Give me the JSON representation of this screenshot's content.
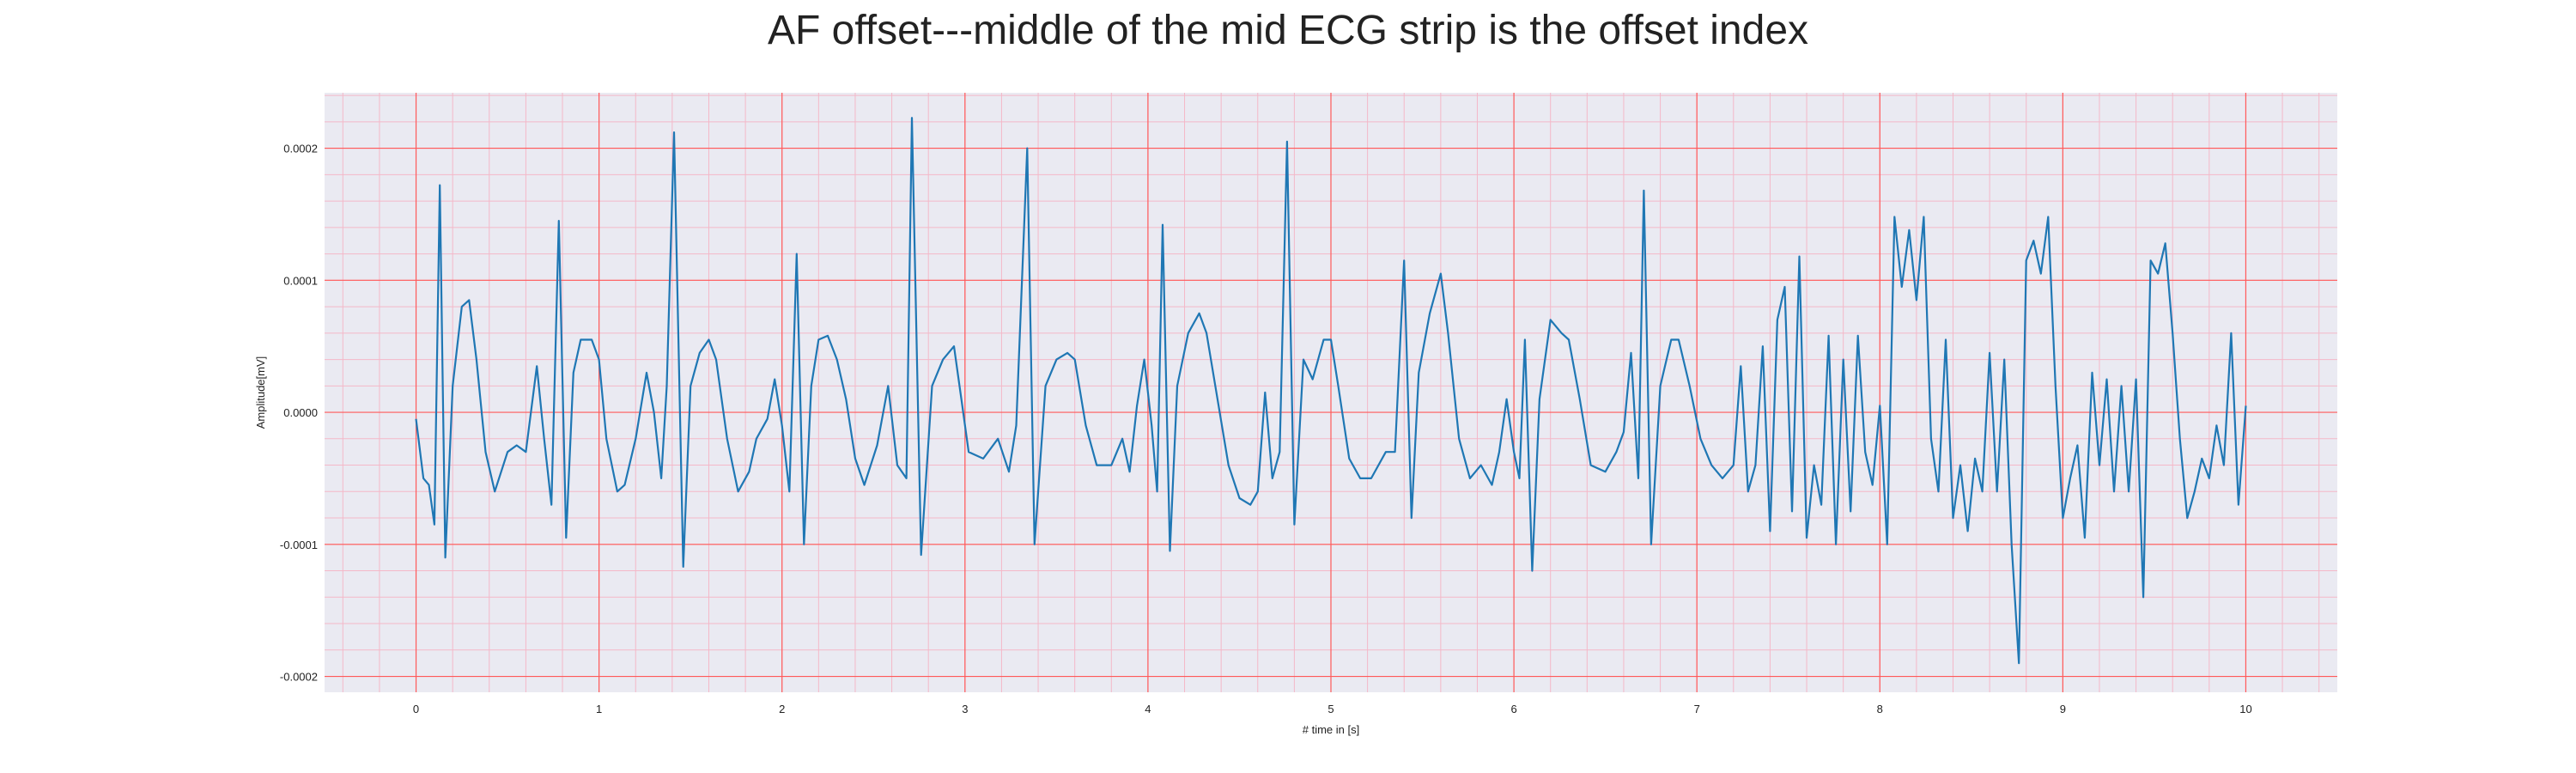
{
  "chart_data": {
    "type": "line",
    "title": "AF offset---middle of the mid ECG strip is the offset index",
    "xlabel": "# time in [s]",
    "ylabel": "Amplitude[mV]",
    "xlim": [
      -0.5,
      10.5
    ],
    "ylim": [
      -0.000212,
      0.000242
    ],
    "x_ticks": [
      0,
      1,
      2,
      3,
      4,
      5,
      6,
      7,
      8,
      9,
      10
    ],
    "x_tick_labels": [
      "0",
      "1",
      "2",
      "3",
      "4",
      "5",
      "6",
      "7",
      "8",
      "9",
      "10"
    ],
    "y_ticks": [
      -0.0002,
      -0.0001,
      0.0,
      0.0001,
      0.0002
    ],
    "y_tick_labels": [
      "-0.0002",
      "-0.0001",
      "0.0000",
      "0.0001",
      "0.0002"
    ],
    "grid": true,
    "minor_grid": true,
    "colors": {
      "line": "#1f77b4",
      "plot_background": "#eaeaf2",
      "major_grid": "#ff5a5a",
      "minor_grid": "#f4b8c8"
    },
    "series": [
      {
        "points": [
          [
            0.0,
            -5e-06
          ],
          [
            0.04,
            -5e-05
          ],
          [
            0.07,
            -5.5e-05
          ],
          [
            0.1,
            -8.5e-05
          ],
          [
            0.13,
            0.000172
          ],
          [
            0.16,
            -0.00011
          ],
          [
            0.2,
            2e-05
          ],
          [
            0.25,
            8e-05
          ],
          [
            0.29,
            8.5e-05
          ],
          [
            0.33,
            4e-05
          ],
          [
            0.38,
            -3e-05
          ],
          [
            0.43,
            -6e-05
          ],
          [
            0.5,
            -3e-05
          ],
          [
            0.55,
            -2.5e-05
          ],
          [
            0.6,
            -3e-05
          ],
          [
            0.66,
            3.5e-05
          ],
          [
            0.7,
            -2e-05
          ],
          [
            0.74,
            -7e-05
          ],
          [
            0.78,
            0.000145
          ],
          [
            0.82,
            -9.5e-05
          ],
          [
            0.86,
            3e-05
          ],
          [
            0.9,
            5.5e-05
          ],
          [
            0.96,
            5.5e-05
          ],
          [
            1.0,
            4e-05
          ],
          [
            1.04,
            -2e-05
          ],
          [
            1.1,
            -6e-05
          ],
          [
            1.14,
            -5.5e-05
          ],
          [
            1.2,
            -2e-05
          ],
          [
            1.26,
            3e-05
          ],
          [
            1.3,
            0.0
          ],
          [
            1.34,
            -5e-05
          ],
          [
            1.37,
            2e-05
          ],
          [
            1.41,
            0.000212
          ],
          [
            1.46,
            -0.000117
          ],
          [
            1.5,
            2e-05
          ],
          [
            1.55,
            4.5e-05
          ],
          [
            1.6,
            5.5e-05
          ],
          [
            1.64,
            4e-05
          ],
          [
            1.7,
            -2e-05
          ],
          [
            1.76,
            -6e-05
          ],
          [
            1.82,
            -4.5e-05
          ],
          [
            1.86,
            -2e-05
          ],
          [
            1.92,
            -5e-06
          ],
          [
            1.96,
            2.5e-05
          ],
          [
            2.0,
            -1e-05
          ],
          [
            2.04,
            -6e-05
          ],
          [
            2.08,
            0.00012
          ],
          [
            2.12,
            -0.0001
          ],
          [
            2.16,
            2e-05
          ],
          [
            2.2,
            5.5e-05
          ],
          [
            2.25,
            5.8e-05
          ],
          [
            2.3,
            4e-05
          ],
          [
            2.35,
            1e-05
          ],
          [
            2.4,
            -3.5e-05
          ],
          [
            2.45,
            -5.5e-05
          ],
          [
            2.52,
            -2.5e-05
          ],
          [
            2.58,
            2e-05
          ],
          [
            2.63,
            -4e-05
          ],
          [
            2.68,
            -5e-05
          ],
          [
            2.71,
            0.000223
          ],
          [
            2.76,
            -0.000108
          ],
          [
            2.82,
            2e-05
          ],
          [
            2.88,
            4e-05
          ],
          [
            2.94,
            5e-05
          ],
          [
            2.98,
            1e-05
          ],
          [
            3.02,
            -3e-05
          ],
          [
            3.1,
            -3.5e-05
          ],
          [
            3.18,
            -2e-05
          ],
          [
            3.24,
            -4.5e-05
          ],
          [
            3.28,
            -1e-05
          ],
          [
            3.34,
            0.0002
          ],
          [
            3.38,
            -0.0001
          ],
          [
            3.44,
            2e-05
          ],
          [
            3.5,
            4e-05
          ],
          [
            3.56,
            4.5e-05
          ],
          [
            3.6,
            4e-05
          ],
          [
            3.66,
            -1e-05
          ],
          [
            3.72,
            -4e-05
          ],
          [
            3.8,
            -4e-05
          ],
          [
            3.86,
            -2e-05
          ],
          [
            3.9,
            -4.5e-05
          ],
          [
            3.94,
            5e-06
          ],
          [
            3.98,
            4e-05
          ],
          [
            4.02,
            -1e-05
          ],
          [
            4.05,
            -6e-05
          ],
          [
            4.08,
            0.000142
          ],
          [
            4.12,
            -0.000105
          ],
          [
            4.16,
            2e-05
          ],
          [
            4.22,
            6e-05
          ],
          [
            4.28,
            7.5e-05
          ],
          [
            4.32,
            6e-05
          ],
          [
            4.38,
            1e-05
          ],
          [
            4.44,
            -4e-05
          ],
          [
            4.5,
            -6.5e-05
          ],
          [
            4.56,
            -7e-05
          ],
          [
            4.6,
            -6e-05
          ],
          [
            4.64,
            1.5e-05
          ],
          [
            4.68,
            -5e-05
          ],
          [
            4.72,
            -3e-05
          ],
          [
            4.76,
            0.000205
          ],
          [
            4.8,
            -8.5e-05
          ],
          [
            4.85,
            4e-05
          ],
          [
            4.9,
            2.5e-05
          ],
          [
            4.96,
            5.5e-05
          ],
          [
            5.0,
            5.5e-05
          ],
          [
            5.04,
            2e-05
          ],
          [
            5.1,
            -3.5e-05
          ],
          [
            5.16,
            -5e-05
          ],
          [
            5.22,
            -5e-05
          ],
          [
            5.3,
            -3e-05
          ],
          [
            5.35,
            -3e-05
          ],
          [
            5.4,
            0.000115
          ],
          [
            5.44,
            -8e-05
          ],
          [
            5.48,
            3e-05
          ],
          [
            5.54,
            7.5e-05
          ],
          [
            5.6,
            0.000105
          ],
          [
            5.64,
            6e-05
          ],
          [
            5.7,
            -2e-05
          ],
          [
            5.76,
            -5e-05
          ],
          [
            5.82,
            -4e-05
          ],
          [
            5.88,
            -5.5e-05
          ],
          [
            5.92,
            -3e-05
          ],
          [
            5.96,
            1e-05
          ],
          [
            6.0,
            -3e-05
          ],
          [
            6.03,
            -5e-05
          ],
          [
            6.06,
            5.5e-05
          ],
          [
            6.1,
            -0.00012
          ],
          [
            6.14,
            1e-05
          ],
          [
            6.2,
            7e-05
          ],
          [
            6.26,
            6e-05
          ],
          [
            6.3,
            5.5e-05
          ],
          [
            6.36,
            1e-05
          ],
          [
            6.42,
            -4e-05
          ],
          [
            6.5,
            -4.5e-05
          ],
          [
            6.56,
            -3e-05
          ],
          [
            6.6,
            -1.5e-05
          ],
          [
            6.64,
            4.5e-05
          ],
          [
            6.68,
            -5e-05
          ],
          [
            6.71,
            0.000168
          ],
          [
            6.75,
            -0.0001
          ],
          [
            6.8,
            2e-05
          ],
          [
            6.86,
            5.5e-05
          ],
          [
            6.9,
            5.5e-05
          ],
          [
            6.96,
            2e-05
          ],
          [
            7.02,
            -2e-05
          ],
          [
            7.08,
            -4e-05
          ],
          [
            7.14,
            -5e-05
          ],
          [
            7.2,
            -4e-05
          ],
          [
            7.24,
            3.5e-05
          ],
          [
            7.28,
            -6e-05
          ],
          [
            7.32,
            -4e-05
          ],
          [
            7.36,
            5e-05
          ],
          [
            7.4,
            -9e-05
          ],
          [
            7.44,
            7e-05
          ],
          [
            7.48,
            9.5e-05
          ],
          [
            7.52,
            -7.5e-05
          ],
          [
            7.56,
            0.000118
          ],
          [
            7.6,
            -9.5e-05
          ],
          [
            7.64,
            -4e-05
          ],
          [
            7.68,
            -7e-05
          ],
          [
            7.72,
            5.8e-05
          ],
          [
            7.76,
            -0.0001
          ],
          [
            7.8,
            4e-05
          ],
          [
            7.84,
            -7.5e-05
          ],
          [
            7.88,
            5.8e-05
          ],
          [
            7.92,
            -3e-05
          ],
          [
            7.96,
            -5.5e-05
          ],
          [
            8.0,
            5e-06
          ],
          [
            8.04,
            -0.0001
          ],
          [
            8.08,
            0.000148
          ],
          [
            8.12,
            9.5e-05
          ],
          [
            8.16,
            0.000138
          ],
          [
            8.2,
            8.5e-05
          ],
          [
            8.24,
            0.000148
          ],
          [
            8.28,
            -2e-05
          ],
          [
            8.32,
            -6e-05
          ],
          [
            8.36,
            5.5e-05
          ],
          [
            8.4,
            -8e-05
          ],
          [
            8.44,
            -4e-05
          ],
          [
            8.48,
            -9e-05
          ],
          [
            8.52,
            -3.5e-05
          ],
          [
            8.56,
            -6e-05
          ],
          [
            8.6,
            4.5e-05
          ],
          [
            8.64,
            -6e-05
          ],
          [
            8.68,
            4e-05
          ],
          [
            8.72,
            -0.0001
          ],
          [
            8.76,
            -0.00019
          ],
          [
            8.8,
            0.000115
          ],
          [
            8.84,
            0.00013
          ],
          [
            8.88,
            0.000105
          ],
          [
            8.92,
            0.000148
          ],
          [
            8.96,
            2e-05
          ],
          [
            9.0,
            -8e-05
          ],
          [
            9.04,
            -5e-05
          ],
          [
            9.08,
            -2.5e-05
          ],
          [
            9.12,
            -9.5e-05
          ],
          [
            9.16,
            3e-05
          ],
          [
            9.2,
            -4e-05
          ],
          [
            9.24,
            2.5e-05
          ],
          [
            9.28,
            -6e-05
          ],
          [
            9.32,
            2e-05
          ],
          [
            9.36,
            -6e-05
          ],
          [
            9.4,
            2.5e-05
          ],
          [
            9.44,
            -0.00014
          ],
          [
            9.48,
            0.000115
          ],
          [
            9.52,
            0.000105
          ],
          [
            9.56,
            0.000128
          ],
          [
            9.6,
            6e-05
          ],
          [
            9.64,
            -2e-05
          ],
          [
            9.68,
            -8e-05
          ],
          [
            9.72,
            -6e-05
          ],
          [
            9.76,
            -3.5e-05
          ],
          [
            9.8,
            -5e-05
          ],
          [
            9.84,
            -1e-05
          ],
          [
            9.88,
            -4e-05
          ],
          [
            9.92,
            6e-05
          ],
          [
            9.96,
            -7e-05
          ],
          [
            10.0,
            5e-06
          ]
        ]
      }
    ]
  }
}
